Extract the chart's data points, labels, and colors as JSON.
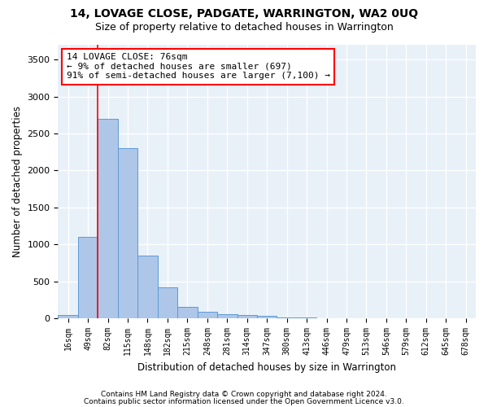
{
  "title1": "14, LOVAGE CLOSE, PADGATE, WARRINGTON, WA2 0UQ",
  "title2": "Size of property relative to detached houses in Warrington",
  "xlabel": "Distribution of detached houses by size in Warrington",
  "ylabel": "Number of detached properties",
  "categories": [
    "16sqm",
    "49sqm",
    "82sqm",
    "115sqm",
    "148sqm",
    "182sqm",
    "215sqm",
    "248sqm",
    "281sqm",
    "314sqm",
    "347sqm",
    "380sqm",
    "413sqm",
    "446sqm",
    "479sqm",
    "513sqm",
    "546sqm",
    "579sqm",
    "612sqm",
    "645sqm",
    "678sqm"
  ],
  "values": [
    50,
    1100,
    2700,
    2300,
    850,
    420,
    160,
    90,
    60,
    50,
    30,
    15,
    10,
    5,
    3,
    2,
    1,
    1,
    1,
    1,
    1
  ],
  "bar_color": "#aec6e8",
  "bar_edge_color": "#5b9bd5",
  "annotation_box_text": "14 LOVAGE CLOSE: 76sqm\n← 9% of detached houses are smaller (697)\n91% of semi-detached houses are larger (7,100) →",
  "red_line_x": 1.5,
  "ylim": [
    0,
    3700
  ],
  "yticks": [
    0,
    500,
    1000,
    1500,
    2000,
    2500,
    3000,
    3500
  ],
  "bg_color": "#e8f0f8",
  "grid_color": "#ffffff",
  "footer1": "Contains HM Land Registry data © Crown copyright and database right 2024.",
  "footer2": "Contains public sector information licensed under the Open Government Licence v3.0."
}
